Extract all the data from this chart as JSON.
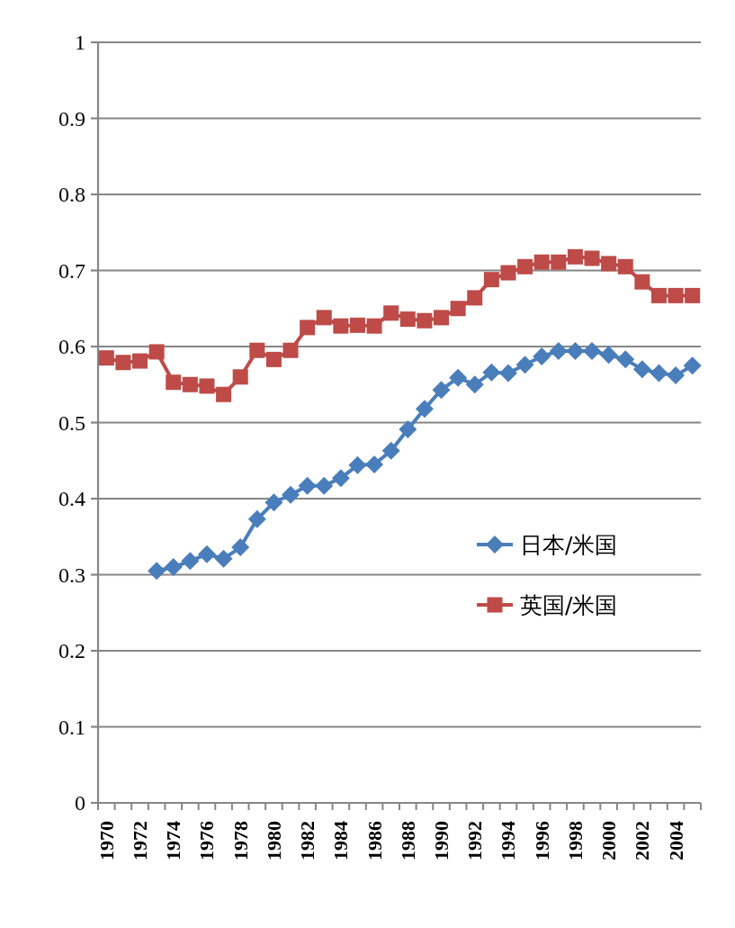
{
  "chart_data": {
    "type": "line",
    "categories": [
      "1970",
      null,
      "1972",
      null,
      "1974",
      null,
      "1976",
      null,
      "1978",
      null,
      "1980",
      null,
      "1982",
      null,
      "1984",
      null,
      "1986",
      null,
      "1988",
      null,
      "1990",
      null,
      "1992",
      null,
      "1994",
      null,
      "1996",
      null,
      "1998",
      null,
      "2000",
      null,
      "2002",
      null,
      "2004",
      null
    ],
    "series": [
      {
        "name": "日本/米国",
        "color": "#4a7ebb",
        "marker": "diamond",
        "values": [
          null,
          null,
          null,
          0.305,
          0.31,
          0.318,
          0.327,
          0.321,
          0.336,
          0.373,
          0.395,
          0.405,
          0.417,
          0.417,
          0.427,
          0.444,
          0.445,
          0.463,
          0.491,
          0.518,
          0.543,
          0.559,
          0.55,
          0.566,
          0.565,
          0.576,
          0.587,
          0.594,
          0.594,
          0.594,
          0.589,
          0.583,
          0.57,
          0.565,
          0.562,
          0.575
        ]
      },
      {
        "name": "英国/米国",
        "color": "#be4b48",
        "marker": "square",
        "values": [
          0.585,
          0.579,
          0.581,
          0.593,
          0.553,
          0.55,
          0.548,
          0.537,
          0.56,
          0.595,
          0.583,
          0.595,
          0.625,
          0.638,
          0.627,
          0.628,
          0.627,
          0.644,
          0.636,
          0.634,
          0.638,
          0.65,
          0.664,
          0.688,
          0.697,
          0.705,
          0.711,
          0.711,
          0.718,
          0.716,
          0.709,
          0.705,
          0.685,
          0.667,
          0.667,
          0.667
        ]
      }
    ],
    "ylim": [
      0,
      1
    ],
    "yticks": [
      0,
      0.1,
      0.2,
      0.3,
      0.4,
      0.5,
      0.6,
      0.7,
      0.8,
      0.9,
      1
    ],
    "grid": "y",
    "legend": "right"
  }
}
